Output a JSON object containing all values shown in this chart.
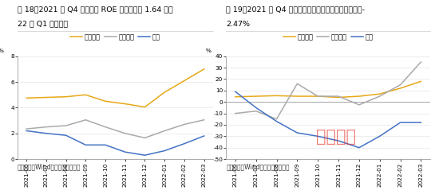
{
  "x_labels": [
    "2021-06",
    "2021-07",
    "2021-08",
    "2021-09",
    "2021-10",
    "2021-11",
    "2021-12",
    "2022-01",
    "2022-02",
    "2022-03"
  ],
  "chart1": {
    "title1": "图 18：2021 年 Q4 电力设备 ROE 快速下降至 1.64 并于",
    "title2": "22 年 Q1 触底反弹",
    "ylabel": "%",
    "ylim": [
      0,
      8
    ],
    "yticks": [
      0,
      2,
      4,
      6,
      8
    ],
    "food_data": [
      4.75,
      4.8,
      4.85,
      5.0,
      4.5,
      4.3,
      4.05,
      5.2,
      6.1,
      7.0
    ],
    "power_data": [
      2.35,
      2.5,
      2.6,
      3.05,
      2.5,
      2.0,
      1.65,
      2.2,
      2.7,
      3.05
    ],
    "auto_data": [
      2.2,
      2.0,
      1.85,
      1.1,
      1.1,
      0.55,
      0.3,
      0.65,
      1.2,
      1.8
    ],
    "source": "资料来源：Wind，国海证券研究所"
  },
  "chart2": {
    "title1": "图 19：2021 年 Q4 电力设备归母净利润同比增速回落至-",
    "title2": "2.47%",
    "ylabel": "%",
    "ylim": [
      -50,
      40
    ],
    "yticks": [
      -50,
      -40,
      -30,
      -20,
      -10,
      0,
      10,
      20,
      30,
      40
    ],
    "food_data": [
      4.5,
      5.0,
      5.5,
      5.0,
      5.0,
      4.0,
      5.0,
      7.0,
      12.0,
      18.0
    ],
    "power_data": [
      -10.0,
      -8.0,
      -15.0,
      16.0,
      5.0,
      5.0,
      -2.5,
      5.0,
      15.0,
      35.0
    ],
    "auto_data": [
      9.0,
      -5.0,
      -17.0,
      -27.0,
      -30.0,
      -34.0,
      -40.0,
      -30.0,
      -18.0,
      -18.0
    ],
    "source": "资料来源：Wind，国海证券研究所"
  },
  "food_color": "#E6A817",
  "power_color": "#AAAAAA",
  "auto_color": "#4472C4",
  "legend_labels": [
    "食品饮料",
    "电力设备",
    "汽车"
  ],
  "watermark_text": "河南龙网",
  "watermark_color": "#E8322A",
  "fig_bg": "#FFFFFF",
  "title_fontsize": 6.8,
  "tick_fontsize": 5.2,
  "source_fontsize": 5.5,
  "legend_fontsize": 6.0,
  "line_width": 1.1
}
